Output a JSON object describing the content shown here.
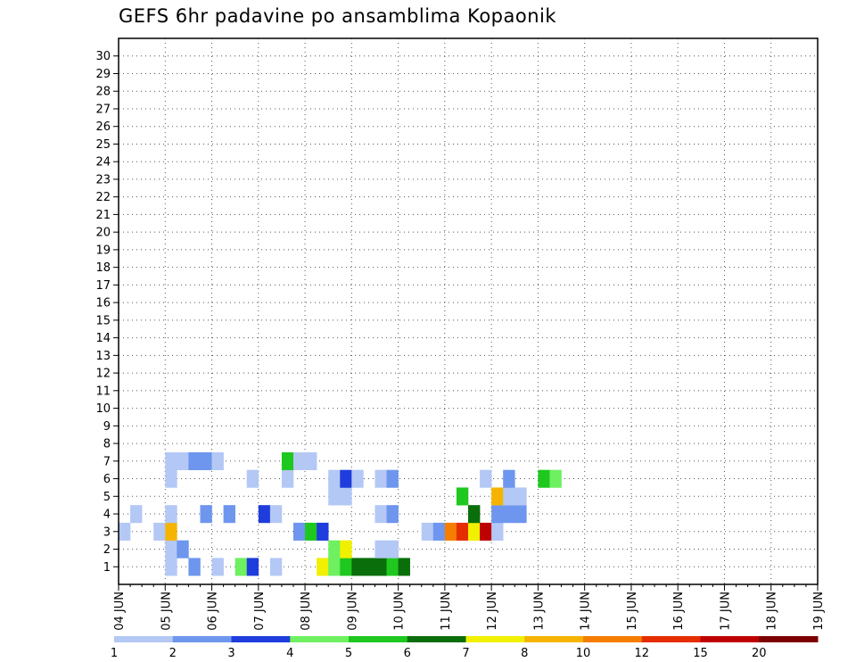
{
  "chart_data": {
    "type": "heatmap",
    "title": "GEFS 6hr padavine po ansamblima Kopaonik",
    "xlabel": "",
    "ylabel": "",
    "x_ticks": [
      "04 JUN",
      "05 JUN",
      "06 JUN",
      "07 JUN",
      "08 JUN",
      "09 JUN",
      "10 JUN",
      "11 JUN",
      "12 JUN",
      "13 JUN",
      "14 JUN",
      "15 JUN",
      "16 JUN",
      "17 JUN",
      "18 JUN",
      "19 JUN"
    ],
    "y_ticks": [
      "1",
      "2",
      "3",
      "4",
      "5",
      "6",
      "7",
      "8",
      "9",
      "10",
      "11",
      "12",
      "13",
      "14",
      "15",
      "16",
      "17",
      "18",
      "19",
      "20",
      "21",
      "22",
      "23",
      "24",
      "25",
      "26",
      "27",
      "28",
      "29",
      "30"
    ],
    "grid": true,
    "colorbar": {
      "labels": [
        "1",
        "2",
        "3",
        "4",
        "5",
        "6",
        "7",
        "8",
        "10",
        "12",
        "15",
        "20"
      ],
      "colors": [
        "#b4c8f5",
        "#6e96ee",
        "#1e3ddc",
        "#6ef060",
        "#1ec81e",
        "#0a6e0a",
        "#f0f000",
        "#f5b400",
        "#f57d00",
        "#e62d00",
        "#be0000",
        "#7d0000"
      ]
    },
    "cells": [
      [
        4,
        1,
        1
      ],
      [
        6,
        1,
        2
      ],
      [
        8,
        1,
        1
      ],
      [
        10,
        1,
        4
      ],
      [
        11,
        1,
        3
      ],
      [
        13,
        1,
        1
      ],
      [
        17,
        1,
        7
      ],
      [
        18,
        1,
        4
      ],
      [
        19,
        1,
        5
      ],
      [
        20,
        1,
        6
      ],
      [
        21,
        1,
        6
      ],
      [
        22,
        1,
        6
      ],
      [
        23,
        1,
        5
      ],
      [
        24,
        1,
        6
      ],
      [
        4,
        2,
        1
      ],
      [
        5,
        2,
        2
      ],
      [
        18,
        2,
        4
      ],
      [
        19,
        2,
        7
      ],
      [
        22,
        2,
        1
      ],
      [
        23,
        2,
        1
      ],
      [
        0,
        3,
        1
      ],
      [
        3,
        3,
        1
      ],
      [
        4,
        3,
        8
      ],
      [
        15,
        3,
        2
      ],
      [
        16,
        3,
        5
      ],
      [
        17,
        3,
        3
      ],
      [
        26,
        3,
        1
      ],
      [
        27,
        3,
        2
      ],
      [
        28,
        3,
        9
      ],
      [
        29,
        3,
        10
      ],
      [
        30,
        3,
        7
      ],
      [
        31,
        3,
        11
      ],
      [
        32,
        3,
        1
      ],
      [
        1,
        4,
        1
      ],
      [
        4,
        4,
        1
      ],
      [
        7,
        4,
        2
      ],
      [
        9,
        4,
        2
      ],
      [
        12,
        4,
        3
      ],
      [
        13,
        4,
        1
      ],
      [
        22,
        4,
        1
      ],
      [
        23,
        4,
        2
      ],
      [
        30,
        4,
        6
      ],
      [
        32,
        4,
        2
      ],
      [
        33,
        4,
        2
      ],
      [
        34,
        4,
        2
      ],
      [
        18,
        5,
        1
      ],
      [
        19,
        5,
        1
      ],
      [
        29,
        5,
        5
      ],
      [
        32,
        5,
        8
      ],
      [
        33,
        5,
        1
      ],
      [
        34,
        5,
        1
      ],
      [
        4,
        6,
        1
      ],
      [
        11,
        6,
        1
      ],
      [
        14,
        6,
        1
      ],
      [
        18,
        6,
        1
      ],
      [
        19,
        6,
        3
      ],
      [
        20,
        6,
        1
      ],
      [
        22,
        6,
        1
      ],
      [
        23,
        6,
        2
      ],
      [
        31,
        6,
        1
      ],
      [
        33,
        6,
        2
      ],
      [
        36,
        6,
        5
      ],
      [
        37,
        6,
        4
      ],
      [
        4,
        7,
        1
      ],
      [
        5,
        7,
        1
      ],
      [
        6,
        7,
        2
      ],
      [
        7,
        7,
        2
      ],
      [
        8,
        7,
        1
      ],
      [
        14,
        7,
        5
      ],
      [
        15,
        7,
        1
      ],
      [
        16,
        7,
        1
      ]
    ]
  }
}
